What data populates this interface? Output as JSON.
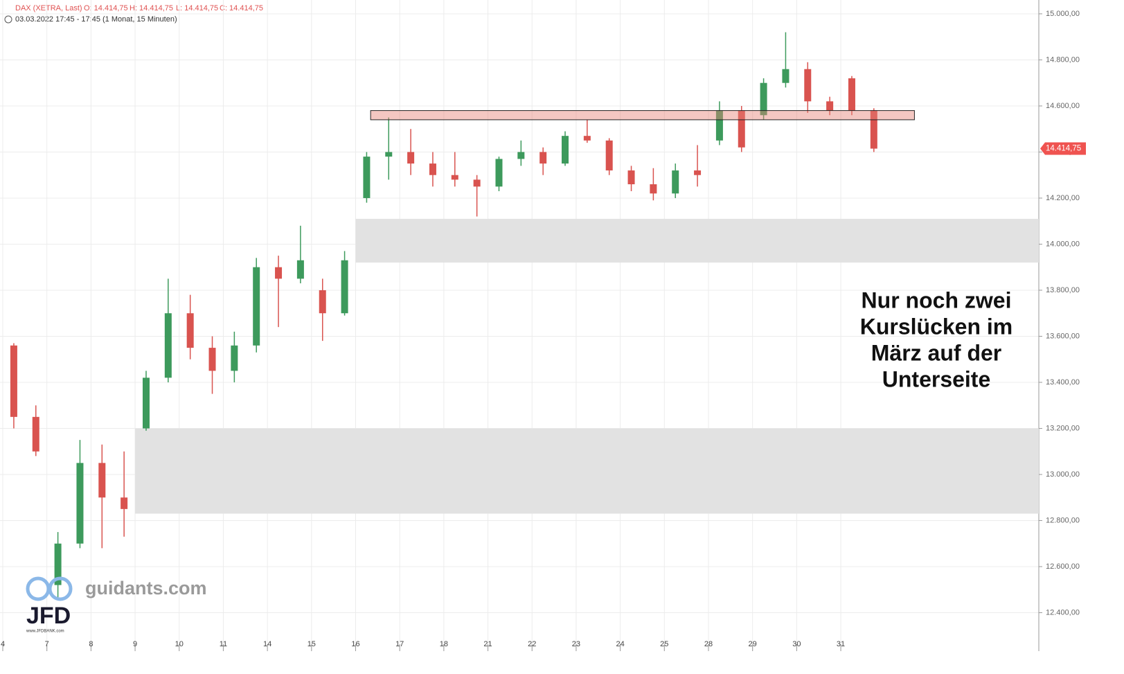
{
  "chart_data": {
    "type": "candlestick",
    "header": {
      "symbol": "DAX (XETRA, Last)",
      "open": "O: 14.414,75",
      "high": "H: 14.414,75",
      "low": "L: 14.414,75",
      "close": "C: 14.414,75",
      "time": "03.03.2022 17:45 - 17:45",
      "interval": "(1 Monat, 15 Minuten)"
    },
    "annotation": [
      "Nur noch zwei",
      "Kurslücken im",
      "März auf der",
      "Unterseite"
    ],
    "last_price": {
      "value": 14414.75,
      "label": "14.414,75"
    },
    "watermark": {
      "site": "guidants.com",
      "brand": "JFD",
      "url": "www.JFDBANK.com"
    },
    "up_color": "#3d9a5c",
    "down_color": "#d9534f",
    "x": [
      0.25,
      0.75,
      1.25,
      1.75,
      2.25,
      2.75,
      3.25,
      3.75,
      4.25,
      4.75,
      5.25,
      5.75,
      6.25,
      6.75,
      7.25,
      7.75,
      8.25,
      8.75,
      9.25,
      9.75,
      10.25,
      10.75,
      11.25,
      11.75,
      12.25,
      12.75,
      13.25,
      13.75,
      14.25,
      14.75,
      15.25,
      15.75,
      16.25,
      16.75,
      17.25,
      17.75,
      18.25,
      18.75,
      19.25,
      19.75
    ],
    "open": [
      13560,
      13250,
      12520,
      12700,
      13050,
      12900,
      13200,
      13420,
      13700,
      13550,
      13450,
      13560,
      13900,
      13850,
      13800,
      13700,
      14200,
      14380,
      14400,
      14350,
      14300,
      14280,
      14250,
      14370,
      14400,
      14350,
      14470,
      14450,
      14320,
      14260,
      14220,
      14320,
      14450,
      14580,
      14560,
      14700,
      14760,
      14620,
      14720,
      14580
    ],
    "high": [
      13570,
      13300,
      12750,
      13150,
      13130,
      13100,
      13450,
      13850,
      13780,
      13600,
      13620,
      13940,
      13950,
      14080,
      13850,
      13970,
      14400,
      14550,
      14500,
      14400,
      14400,
      14300,
      14380,
      14450,
      14420,
      14490,
      14540,
      14460,
      14340,
      14330,
      14350,
      14430,
      14620,
      14600,
      14720,
      14920,
      14790,
      14640,
      14730,
      14590
    ],
    "low": [
      13200,
      13080,
      12460,
      12680,
      12680,
      12730,
      13190,
      13400,
      13500,
      13350,
      13400,
      13530,
      13640,
      13830,
      13580,
      13690,
      14180,
      14280,
      14300,
      14250,
      14250,
      14120,
      14230,
      14340,
      14300,
      14340,
      14440,
      14300,
      14230,
      14190,
      14200,
      14250,
      14430,
      14400,
      14540,
      14680,
      14570,
      14560,
      14560,
      14400
    ],
    "close": [
      13250,
      13100,
      12700,
      13050,
      12900,
      12850,
      13420,
      13700,
      13550,
      13450,
      13560,
      13900,
      13850,
      13930,
      13700,
      13930,
      14380,
      14400,
      14350,
      14300,
      14280,
      14250,
      14370,
      14400,
      14350,
      14470,
      14450,
      14320,
      14260,
      14220,
      14320,
      14300,
      14580,
      14420,
      14700,
      14760,
      14620,
      14580,
      14580,
      14414.75
    ],
    "gaps": [
      {
        "x0": 3,
        "y": [
          12830,
          13200
        ]
      },
      {
        "x0": 8,
        "y": [
          13920,
          14110
        ]
      }
    ],
    "resistance": {
      "x": [
        8.34,
        20.67
      ],
      "y": [
        14540,
        14580
      ]
    },
    "xlim": [
      -0.063,
      23.49
    ],
    "ylim": [
      12233,
      15060
    ],
    "xticks": [
      {
        "value": 0,
        "label": "4"
      },
      {
        "value": 1,
        "label": "7"
      },
      {
        "value": 2,
        "label": "8"
      },
      {
        "value": 3,
        "label": "9"
      },
      {
        "value": 4,
        "label": "10"
      },
      {
        "value": 5,
        "label": "11"
      },
      {
        "value": 6,
        "label": "14"
      },
      {
        "value": 7,
        "label": "15"
      },
      {
        "value": 8,
        "label": "16"
      },
      {
        "value": 9,
        "label": "17"
      },
      {
        "value": 10,
        "label": "18"
      },
      {
        "value": 11,
        "label": "21"
      },
      {
        "value": 12,
        "label": "22"
      },
      {
        "value": 13,
        "label": "23"
      },
      {
        "value": 14,
        "label": "24"
      },
      {
        "value": 15,
        "label": "25"
      },
      {
        "value": 16,
        "label": "28"
      },
      {
        "value": 17,
        "label": "29"
      },
      {
        "value": 18,
        "label": "30"
      },
      {
        "value": 19,
        "label": "31"
      }
    ],
    "yticks": [
      {
        "value": 12400,
        "label": "12.400,00"
      },
      {
        "value": 12600,
        "label": "12.600,00"
      },
      {
        "value": 12800,
        "label": "12.800,00"
      },
      {
        "value": 13000,
        "label": "13.000,00"
      },
      {
        "value": 13200,
        "label": "13.200,00"
      },
      {
        "value": 13400,
        "label": "13.400,00"
      },
      {
        "value": 13600,
        "label": "13.600,00"
      },
      {
        "value": 13800,
        "label": "13.800,00"
      },
      {
        "value": 14000,
        "label": "14.000,00"
      },
      {
        "value": 14200,
        "label": "14.200,00"
      },
      {
        "value": 14400,
        "label": "14.400,00"
      },
      {
        "value": 14600,
        "label": "14.600,00"
      },
      {
        "value": 14800,
        "label": "14.800,00"
      },
      {
        "value": 15000,
        "label": "15.000,00"
      }
    ],
    "grid": true
  }
}
